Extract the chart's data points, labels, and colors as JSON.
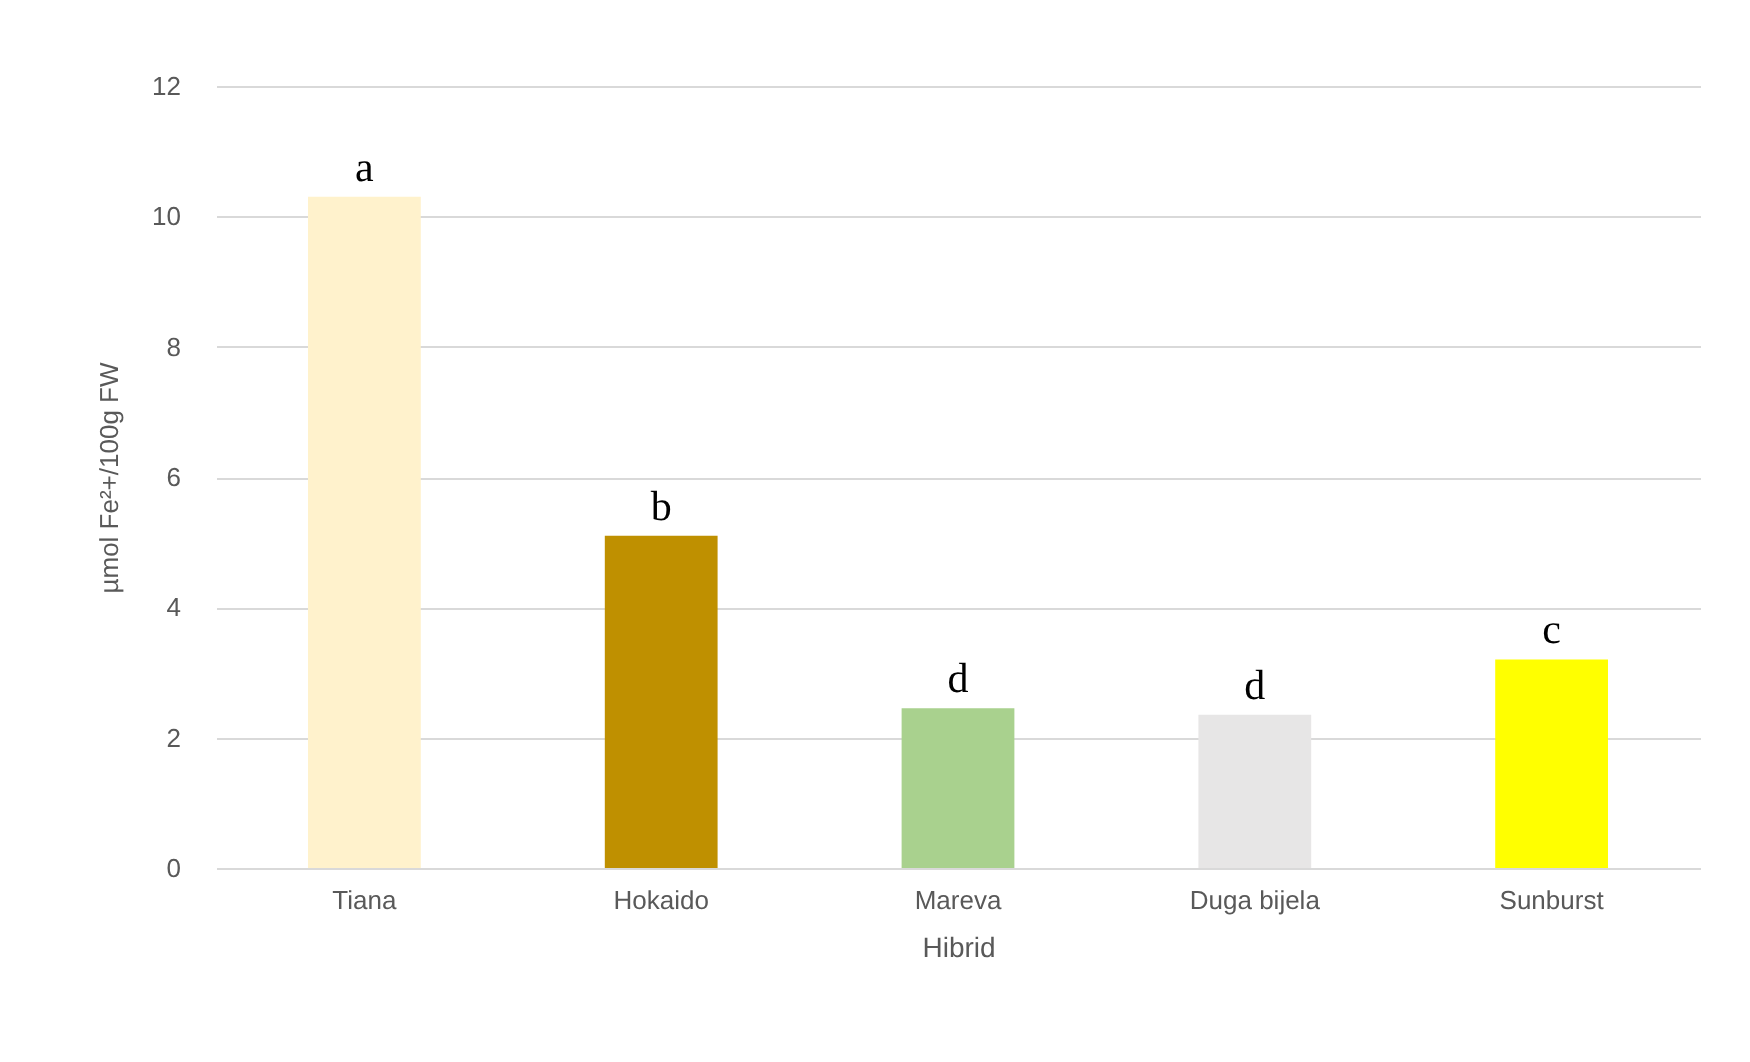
{
  "chart_data": {
    "type": "bar",
    "xlabel": "Hibrid",
    "ylabel": "µmol Fe²+/100g FW",
    "categories": [
      "Tiana",
      "Hokaido",
      "Mareva",
      "Duga bijela",
      "Sunburst"
    ],
    "values": [
      10.3,
      5.1,
      2.45,
      2.35,
      3.2
    ],
    "colors": [
      "#fff2cc",
      "#bf9000",
      "#a9d18e",
      "#e7e6e6",
      "#ffff00"
    ],
    "ylim": [
      0,
      12
    ],
    "yticks": [
      0,
      2,
      4,
      6,
      8,
      10,
      12
    ],
    "grid": "y",
    "annotations": [
      {
        "text": "a",
        "x": "Tiana",
        "y": 10.3
      },
      {
        "text": "b",
        "x": "Hokaido",
        "y": 5.1
      },
      {
        "text": "d",
        "x": "Mareva",
        "y": 2.45
      },
      {
        "text": "d",
        "x": "Duga bijela",
        "y": 2.35
      },
      {
        "text": "c",
        "x": "Sunburst",
        "y": 3.2
      }
    ]
  }
}
